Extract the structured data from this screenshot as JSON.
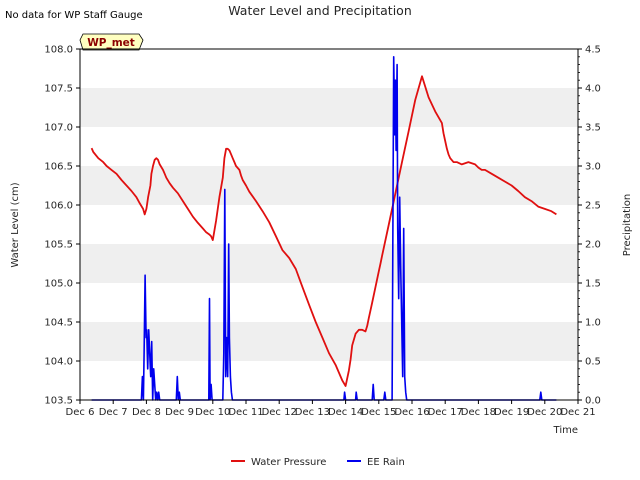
{
  "note": "No data for WP Staff Gauge",
  "badge": "WP_met",
  "chart_data": {
    "type": "line",
    "title": "Water Level and Precipitation",
    "xlabel": "Time",
    "ylabel": "Water Level (cm)",
    "y2label": "Precipitation",
    "xlim": [
      6,
      21
    ],
    "ylim": [
      103.5,
      108.0
    ],
    "y2lim": [
      0.0,
      4.5
    ],
    "x_ticks": [
      6,
      7,
      8,
      9,
      10,
      11,
      12,
      13,
      14,
      15,
      16,
      17,
      18,
      19,
      20,
      21
    ],
    "x_tick_labels": [
      "Dec 6",
      "Dec 7",
      "Dec 8",
      "Dec 9",
      "Dec 10",
      "Dec 11",
      "Dec 12",
      "Dec 13",
      "Dec 14",
      "Dec 15",
      "Dec 16",
      "Dec 17",
      "Dec 18",
      "Dec 19",
      "Dec 20",
      "Dec 21"
    ],
    "y_ticks": [
      103.5,
      104.0,
      104.5,
      105.0,
      105.5,
      106.0,
      106.5,
      107.0,
      107.5,
      108.0
    ],
    "y_tick_labels": [
      "103.5",
      "104.0",
      "104.5",
      "105.0",
      "105.5",
      "106.0",
      "106.5",
      "107.0",
      "107.5",
      "108.0"
    ],
    "y2_ticks": [
      0.0,
      0.5,
      1.0,
      1.5,
      2.0,
      2.5,
      3.0,
      3.5,
      4.0,
      4.5
    ],
    "y2_tick_labels": [
      "0.0",
      "0.5",
      "1.0",
      "1.5",
      "2.0",
      "2.5",
      "3.0",
      "3.5",
      "4.0",
      "4.5"
    ],
    "legend": [
      "Water Pressure",
      "EE Rain"
    ],
    "series": [
      {
        "name": "Water Pressure",
        "axis": "left",
        "color": "#e01010",
        "x": [
          6.35,
          6.4,
          6.55,
          6.7,
          6.8,
          6.95,
          7.1,
          7.25,
          7.4,
          7.55,
          7.7,
          7.8,
          7.9,
          7.95,
          8.0,
          8.05,
          8.12,
          8.15,
          8.2,
          8.25,
          8.3,
          8.35,
          8.4,
          8.5,
          8.55,
          8.6,
          8.7,
          8.8,
          8.95,
          9.1,
          9.25,
          9.4,
          9.55,
          9.7,
          9.8,
          9.9,
          9.95,
          10.0,
          10.1,
          10.2,
          10.3,
          10.35,
          10.4,
          10.45,
          10.5,
          10.55,
          10.6,
          10.65,
          10.7,
          10.8,
          10.85,
          10.9,
          11.0,
          11.1,
          11.3,
          11.5,
          11.7,
          11.9,
          12.1,
          12.3,
          12.5,
          12.7,
          12.9,
          13.1,
          13.3,
          13.5,
          13.7,
          13.9,
          14.0,
          14.1,
          14.15,
          14.2,
          14.3,
          14.4,
          14.5,
          14.6,
          14.65,
          14.7,
          14.75,
          14.8,
          14.9,
          15.0,
          15.05,
          15.1,
          15.3,
          15.5,
          15.7,
          15.9,
          16.1,
          16.3,
          16.5,
          16.7,
          16.9,
          16.95,
          17.0,
          17.05,
          17.1,
          17.15,
          17.25,
          17.35,
          17.5,
          17.7,
          17.9,
          18.0,
          18.1,
          18.2,
          18.4,
          18.6,
          18.8,
          19.0,
          19.2,
          19.4,
          19.6,
          19.8,
          20.0,
          20.2,
          20.35
        ],
        "y": [
          106.73,
          106.68,
          106.6,
          106.55,
          106.5,
          106.45,
          106.4,
          106.32,
          106.25,
          106.18,
          106.1,
          106.02,
          105.95,
          105.88,
          105.95,
          106.1,
          106.25,
          106.4,
          106.5,
          106.58,
          106.6,
          106.58,
          106.52,
          106.45,
          106.4,
          106.35,
          106.28,
          106.22,
          106.15,
          106.05,
          105.95,
          105.85,
          105.77,
          105.7,
          105.65,
          105.62,
          105.6,
          105.55,
          105.8,
          106.1,
          106.35,
          106.6,
          106.72,
          106.72,
          106.7,
          106.65,
          106.6,
          106.55,
          106.5,
          106.45,
          106.38,
          106.32,
          106.25,
          106.17,
          106.05,
          105.92,
          105.78,
          105.6,
          105.42,
          105.32,
          105.18,
          104.95,
          104.72,
          104.5,
          104.3,
          104.1,
          103.95,
          103.75,
          103.68,
          103.88,
          104.02,
          104.2,
          104.35,
          104.4,
          104.4,
          104.38,
          104.45,
          104.55,
          104.65,
          104.75,
          104.95,
          105.15,
          105.25,
          105.35,
          105.75,
          106.15,
          106.55,
          106.95,
          107.35,
          107.65,
          107.38,
          107.2,
          107.05,
          106.92,
          106.82,
          106.72,
          106.65,
          106.6,
          106.55,
          106.55,
          106.52,
          106.55,
          106.52,
          106.48,
          106.45,
          106.45,
          106.4,
          106.35,
          106.3,
          106.25,
          106.18,
          106.1,
          106.05,
          105.98,
          105.95,
          105.92,
          105.88
        ]
      },
      {
        "name": "EE Rain",
        "axis": "right",
        "color": "#0000ee",
        "x": [
          6.35,
          7.85,
          7.88,
          7.91,
          7.93,
          7.96,
          7.99,
          8.01,
          8.04,
          8.07,
          8.1,
          8.13,
          8.16,
          8.19,
          8.22,
          8.25,
          8.28,
          8.31,
          8.34,
          8.37,
          8.4,
          8.43,
          8.5,
          8.53,
          8.9,
          8.93,
          8.96,
          8.99,
          9.02,
          9.8,
          9.88,
          9.9,
          9.92,
          9.95,
          9.98,
          10.3,
          10.33,
          10.36,
          10.39,
          10.42,
          10.45,
          10.48,
          10.5,
          10.53,
          10.56,
          10.59,
          10.62,
          10.65,
          10.68,
          10.71,
          10.74,
          10.8,
          13.95,
          13.97,
          14.0,
          14.3,
          14.32,
          14.35,
          14.8,
          14.83,
          14.86,
          15.15,
          15.18,
          15.21,
          15.4,
          15.45,
          15.48,
          15.5,
          15.52,
          15.55,
          15.57,
          15.6,
          15.63,
          15.66,
          15.69,
          15.72,
          15.75,
          15.78,
          15.81,
          15.84,
          15.87,
          15.92,
          19.85,
          19.88,
          19.91,
          20.35
        ],
        "y": [
          0.0,
          0.0,
          0.3,
          0.0,
          0.6,
          1.6,
          0.8,
          0.9,
          0.4,
          0.9,
          0.6,
          0.3,
          0.75,
          0.0,
          0.4,
          0.2,
          0.0,
          0.1,
          0.0,
          0.1,
          0.0,
          0.0,
          0.0,
          0.0,
          0.0,
          0.3,
          0.0,
          0.1,
          0.0,
          0.0,
          0.0,
          1.3,
          0.0,
          0.2,
          0.0,
          0.0,
          0.6,
          2.7,
          0.3,
          0.8,
          0.3,
          2.0,
          0.8,
          0.3,
          0.1,
          0.0,
          0.0,
          0.0,
          0.0,
          0.0,
          0.0,
          0.0,
          0.0,
          0.1,
          0.0,
          0.0,
          0.1,
          0.0,
          0.0,
          0.2,
          0.0,
          0.0,
          0.1,
          0.0,
          0.0,
          4.4,
          3.4,
          4.1,
          3.2,
          4.3,
          2.2,
          1.3,
          2.6,
          1.7,
          1.0,
          0.3,
          2.2,
          0.3,
          0.1,
          0.0,
          0.0,
          0.0,
          0.0,
          0.1,
          0.0,
          0.0
        ]
      }
    ],
    "grid": false,
    "legend_position": "bottom-center"
  }
}
